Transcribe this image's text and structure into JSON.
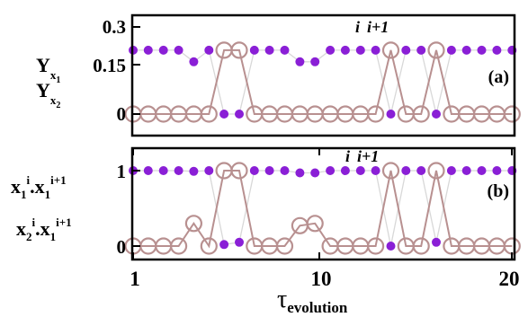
{
  "chart_data": [
    {
      "panel": "a",
      "type": "line",
      "panel_label": "(a)",
      "annotation_i": "i",
      "annotation_i1": "i+1",
      "ylabel_y1": {
        "main": "Y",
        "sub": "x",
        "subsub": "1"
      },
      "ylabel_y2": {
        "main": "Y",
        "sub": "x",
        "subsub": "2"
      },
      "ylim": [
        0,
        0.3
      ],
      "yticks": [
        {
          "value": 0,
          "label": "0"
        },
        {
          "value": 0.15,
          "label": "0.15"
        },
        {
          "value": 0.3,
          "label": "0.3"
        }
      ],
      "series": [
        {
          "marker": "filled-circle",
          "color": "#8a1fd6",
          "line_color": "#d8d8d8",
          "x": [
            1,
            2,
            3,
            4,
            5,
            6,
            7,
            8,
            9,
            10,
            11,
            12,
            13,
            14,
            15,
            16,
            17,
            18,
            19,
            20,
            21,
            22,
            23,
            24,
            25,
            26
          ],
          "y": [
            0.22,
            0.22,
            0.22,
            0.22,
            0.18,
            0.22,
            0,
            0,
            0.22,
            0.22,
            0.22,
            0.18,
            0.18,
            0.22,
            0.22,
            0.22,
            0.22,
            0,
            0.22,
            0.22,
            0,
            0.22,
            0.22,
            0.22,
            0.22,
            0.22
          ]
        },
        {
          "marker": "open-circle",
          "color": "#b89090",
          "line_color": "#b89090",
          "x": [
            1,
            2,
            3,
            4,
            5,
            6,
            7,
            8,
            9,
            10,
            11,
            12,
            13,
            14,
            15,
            16,
            17,
            18,
            19,
            20,
            21,
            22,
            23,
            24,
            25,
            26
          ],
          "y": [
            0,
            0,
            0,
            0,
            0,
            0,
            0.22,
            0.22,
            0,
            0,
            0,
            0,
            0,
            0,
            0,
            0,
            0,
            0.22,
            0,
            0,
            0.22,
            0,
            0,
            0,
            0,
            0
          ]
        }
      ]
    },
    {
      "panel": "b",
      "type": "line",
      "panel_label": "(b)",
      "annotation_i": "i",
      "annotation_i1": "i+1",
      "ylabel_1": {
        "a": "x",
        "a_sub": "1",
        "a_sup": "i",
        "b": ".x",
        "b_sub": "1",
        "b_sup": "i+1"
      },
      "ylabel_2": {
        "a": "x",
        "a_sub": "2",
        "a_sup": "i",
        "b": ".x",
        "b_sub": "1",
        "b_sup": "i+1"
      },
      "ylim": [
        -0.12,
        1.3
      ],
      "yticks": [
        {
          "value": 0,
          "label": "0"
        },
        {
          "value": 1,
          "label": "1"
        }
      ],
      "series": [
        {
          "marker": "filled-circle",
          "color": "#8a1fd6",
          "line_color": "#d8d8d8",
          "x": [
            1,
            2,
            3,
            4,
            5,
            6,
            7,
            8,
            9,
            10,
            11,
            12,
            13,
            14,
            15,
            16,
            17,
            18,
            19,
            20,
            21,
            22,
            23,
            24,
            25,
            26
          ],
          "y": [
            1,
            1,
            1,
            1,
            0.99,
            1,
            0.02,
            0.05,
            1,
            1,
            1,
            0.97,
            0.97,
            1,
            1,
            1,
            1,
            0,
            1,
            1,
            0.05,
            1,
            1,
            1,
            1,
            1
          ]
        },
        {
          "marker": "open-circle",
          "color": "#b89090",
          "line_color": "#b89090",
          "x": [
            1,
            2,
            3,
            4,
            5,
            6,
            7,
            8,
            9,
            10,
            11,
            12,
            13,
            14,
            15,
            16,
            17,
            18,
            19,
            20,
            21,
            22,
            23,
            24,
            25,
            26
          ],
          "y": [
            0,
            0,
            0,
            0,
            0.3,
            0,
            1,
            1,
            0,
            0,
            0,
            0.27,
            0.3,
            0,
            0,
            0,
            0,
            1,
            0,
            0,
            1,
            0,
            0,
            0,
            0,
            0
          ]
        }
      ]
    }
  ],
  "x_axis": {
    "label_main": "τ",
    "label_sub": "evolution",
    "ticks": [
      {
        "label": "1",
        "position": 1
      },
      {
        "label": "10",
        "position": 10
      },
      {
        "label": "20",
        "position": 20
      }
    ]
  }
}
